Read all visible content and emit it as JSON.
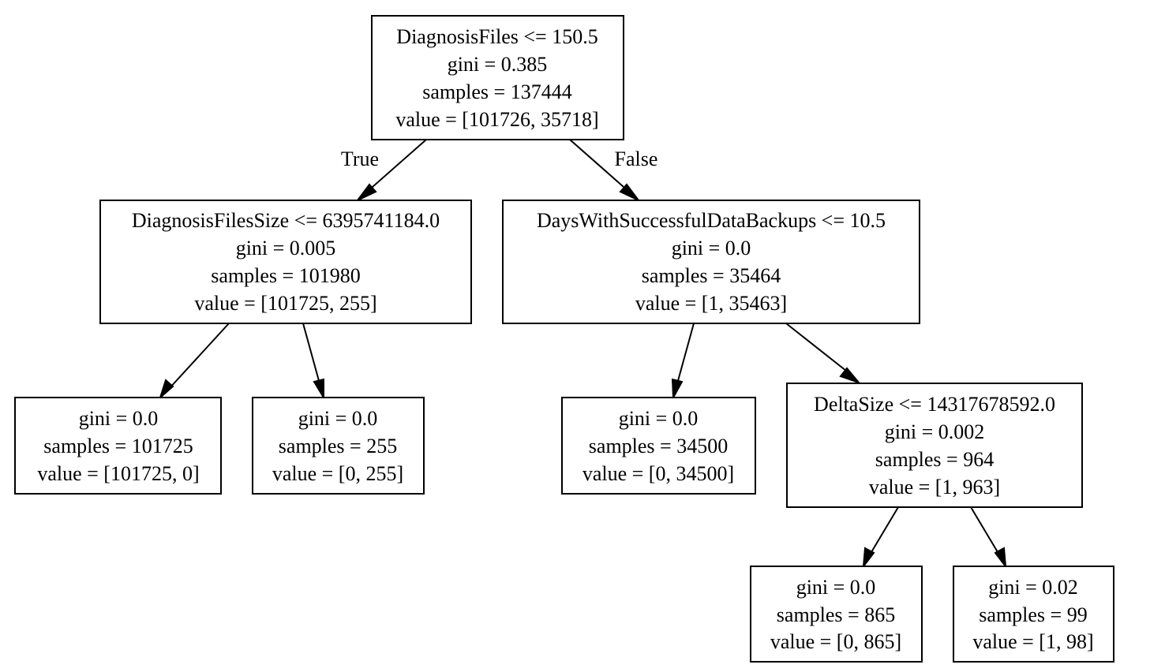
{
  "tree": {
    "nodes": {
      "n0": [
        "DiagnosisFiles <= 150.5",
        "gini = 0.385",
        "samples = 137444",
        "value = [101726, 35718]"
      ],
      "n1": [
        "DiagnosisFilesSize <= 6395741184.0",
        "gini = 0.005",
        "samples = 101980",
        "value = [101725, 255]"
      ],
      "n2": [
        "gini = 0.0",
        "samples = 101725",
        "value = [101725, 0]"
      ],
      "n3": [
        "gini = 0.0",
        "samples = 255",
        "value = [0, 255]"
      ],
      "n4": [
        "DaysWithSuccessfulDataBackups <= 10.5",
        "gini = 0.0",
        "samples = 35464",
        "value = [1, 35463]"
      ],
      "n5": [
        "gini = 0.0",
        "samples = 34500",
        "value = [0, 34500]"
      ],
      "n6": [
        "DeltaSize <= 14317678592.0",
        "gini = 0.002",
        "samples = 964",
        "value = [1, 963]"
      ],
      "n7": [
        "gini = 0.0",
        "samples = 865",
        "value = [0, 865]"
      ],
      "n8": [
        "gini = 0.02",
        "samples = 99",
        "value = [1, 98]"
      ]
    },
    "edge_labels": {
      "true_label": "True",
      "false_label": "False"
    }
  }
}
